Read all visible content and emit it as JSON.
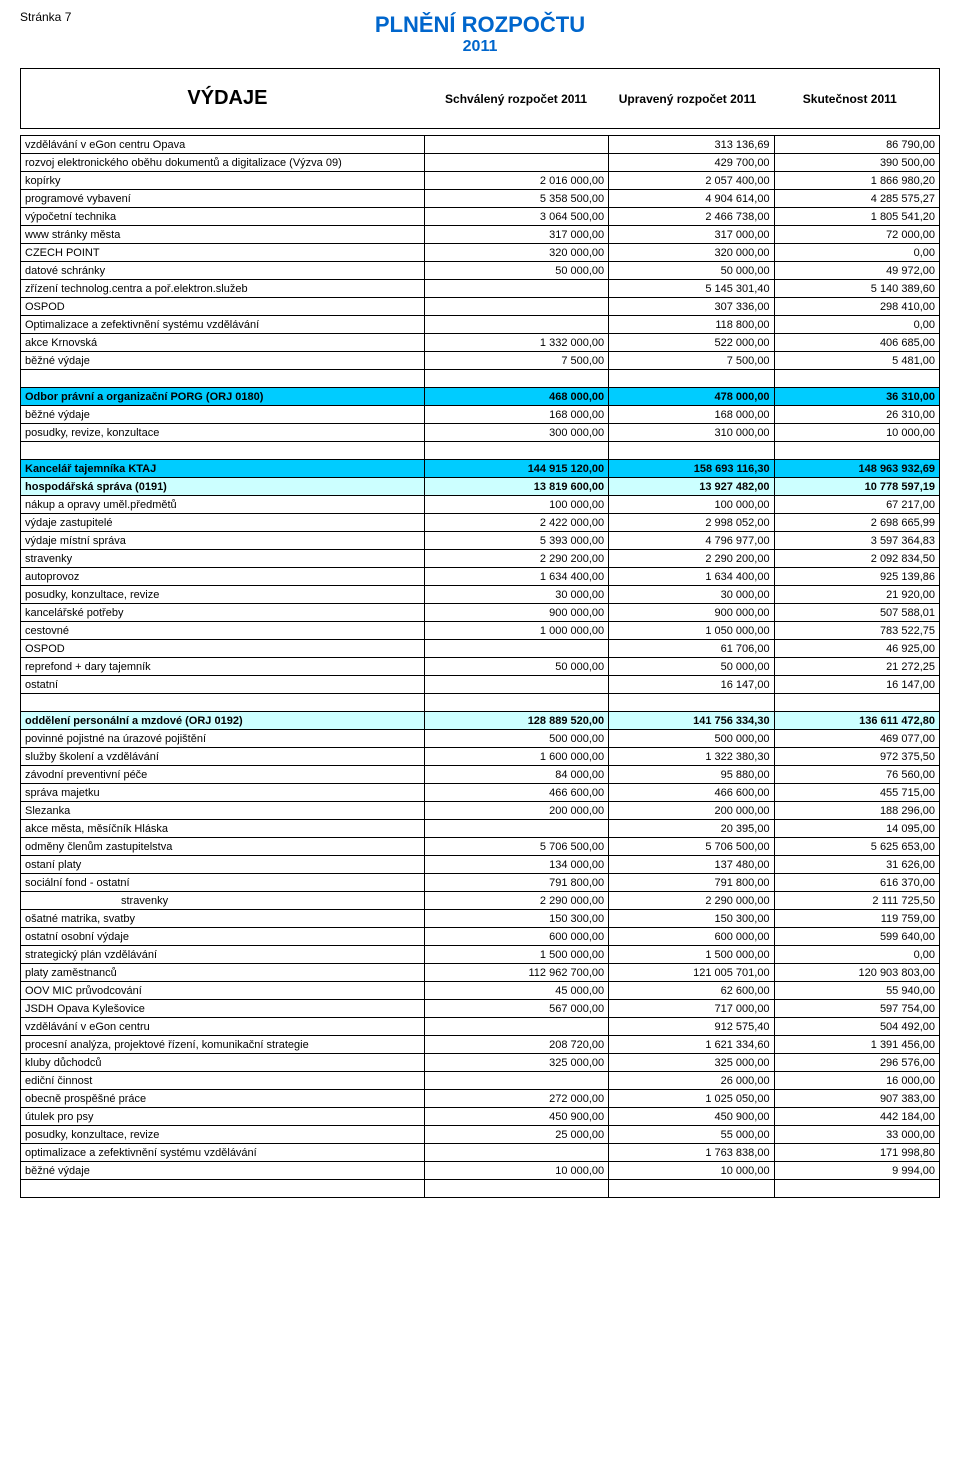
{
  "page_meta": "Stránka 7",
  "title": "PLNĚNÍ ROZPOČTU",
  "subtitle": "2011",
  "header": {
    "h1": "VÝDAJE",
    "h2": "Schválený rozpočet 2011",
    "h3": "Upravený rozpočet 2011",
    "h4": "Skutečnost 2011"
  },
  "colors": {
    "hl1": "#00ccff",
    "hl2": "#ccffff"
  },
  "rows": [
    {
      "l": "vzdělávání v eGon centru Opava",
      "c1": "",
      "c2": "313 136,69",
      "c3": "86 790,00"
    },
    {
      "l": "rozvoj elektronického oběhu dokumentů a digitalizace (Výzva 09)",
      "c1": "",
      "c2": "429 700,00",
      "c3": "390 500,00"
    },
    {
      "l": "kopírky",
      "c1": "2 016 000,00",
      "c2": "2 057 400,00",
      "c3": "1 866 980,20"
    },
    {
      "l": "programové vybavení",
      "c1": "5 358 500,00",
      "c2": "4 904 614,00",
      "c3": "4 285 575,27"
    },
    {
      "l": "výpočetní technika",
      "c1": "3 064 500,00",
      "c2": "2 466 738,00",
      "c3": "1 805 541,20"
    },
    {
      "l": "www stránky města",
      "c1": "317 000,00",
      "c2": "317 000,00",
      "c3": "72 000,00"
    },
    {
      "l": "CZECH POINT",
      "c1": "320 000,00",
      "c2": "320 000,00",
      "c3": "0,00"
    },
    {
      "l": "datové schránky",
      "c1": "50 000,00",
      "c2": "50 000,00",
      "c3": "49 972,00"
    },
    {
      "l": "zřízení technolog.centra a poř.elektron.služeb",
      "c1": "",
      "c2": "5 145 301,40",
      "c3": "5 140 389,60"
    },
    {
      "l": "OSPOD",
      "c1": "",
      "c2": "307 336,00",
      "c3": "298 410,00"
    },
    {
      "l": "Optimalizace a zefektivnění systému vzdělávání",
      "c1": "",
      "c2": "118 800,00",
      "c3": "0,00"
    },
    {
      "l": "akce Krnovská",
      "c1": "1 332 000,00",
      "c2": "522 000,00",
      "c3": "406 685,00"
    },
    {
      "l": "běžné výdaje",
      "c1": "7 500,00",
      "c2": "7 500,00",
      "c3": "5 481,00"
    },
    {
      "spacer": true
    },
    {
      "l": "Odbor právní a organizační PORG (ORJ 0180)",
      "c1": "468 000,00",
      "c2": "478 000,00",
      "c3": "36 310,00",
      "bold": true,
      "bg": "hl1"
    },
    {
      "l": "běžné výdaje",
      "c1": "168 000,00",
      "c2": "168 000,00",
      "c3": "26 310,00"
    },
    {
      "l": "posudky, revize, konzultace",
      "c1": "300 000,00",
      "c2": "310 000,00",
      "c3": "10 000,00"
    },
    {
      "spacer": true
    },
    {
      "l": "Kancelář tajemníka KTAJ",
      "c1": "144 915 120,00",
      "c2": "158 693 116,30",
      "c3": "148 963 932,69",
      "bold": true,
      "bg": "hl1"
    },
    {
      "l": "hospodářská správa (0191)",
      "c1": "13 819 600,00",
      "c2": "13 927 482,00",
      "c3": "10 778 597,19",
      "bold": true,
      "bg": "hl2"
    },
    {
      "l": "nákup a opravy uměl.předmětů",
      "c1": "100 000,00",
      "c2": "100 000,00",
      "c3": "67 217,00"
    },
    {
      "l": "výdaje zastupitelé",
      "c1": "2 422 000,00",
      "c2": "2 998 052,00",
      "c3": "2 698 665,99"
    },
    {
      "l": "výdaje místní správa",
      "c1": "5 393 000,00",
      "c2": "4 796 977,00",
      "c3": "3 597 364,83"
    },
    {
      "l": "stravenky",
      "c1": "2 290 200,00",
      "c2": "2 290 200,00",
      "c3": "2 092 834,50"
    },
    {
      "l": "autoprovoz",
      "c1": "1 634 400,00",
      "c2": "1 634 400,00",
      "c3": "925 139,86"
    },
    {
      "l": "posudky, konzultace, revize",
      "c1": "30 000,00",
      "c2": "30 000,00",
      "c3": "21 920,00"
    },
    {
      "l": "kancelářské potřeby",
      "c1": "900 000,00",
      "c2": "900 000,00",
      "c3": "507 588,01"
    },
    {
      "l": "cestovné",
      "c1": "1 000 000,00",
      "c2": "1 050 000,00",
      "c3": "783 522,75"
    },
    {
      "l": "OSPOD",
      "c1": "",
      "c2": "61 706,00",
      "c3": "46 925,00"
    },
    {
      "l": "reprefond + dary tajemník",
      "c1": "50 000,00",
      "c2": "50 000,00",
      "c3": "21 272,25"
    },
    {
      "l": "ostatní",
      "c1": "",
      "c2": "16 147,00",
      "c3": "16 147,00"
    },
    {
      "spacer": true
    },
    {
      "l": "oddělení personální a mzdové (ORJ 0192)",
      "c1": "128 889 520,00",
      "c2": "141 756 334,30",
      "c3": "136 611 472,80",
      "bold": true,
      "bg": "hl2"
    },
    {
      "l": "povinné pojistné na úrazové pojištění",
      "c1": "500 000,00",
      "c2": "500 000,00",
      "c3": "469 077,00"
    },
    {
      "l": "služby školení a vzdělávání",
      "c1": "1 600 000,00",
      "c2": "1 322 380,30",
      "c3": "972 375,50"
    },
    {
      "l": "závodní preventivní péče",
      "c1": "84 000,00",
      "c2": "95 880,00",
      "c3": "76 560,00"
    },
    {
      "l": "správa majetku",
      "c1": "466 600,00",
      "c2": "466 600,00",
      "c3": "455 715,00"
    },
    {
      "l": "Slezanka",
      "c1": "200 000,00",
      "c2": "200 000,00",
      "c3": "188 296,00"
    },
    {
      "l": "akce města, měsíčník Hláska",
      "c1": "",
      "c2": "20 395,00",
      "c3": "14 095,00"
    },
    {
      "l": "odměny členům zastupitelstva",
      "c1": "5 706 500,00",
      "c2": "5 706 500,00",
      "c3": "5 625 653,00"
    },
    {
      "l": "ostaní platy",
      "c1": "134 000,00",
      "c2": "137 480,00",
      "c3": "31 626,00"
    },
    {
      "l": "sociální fond - ostatní",
      "c1": "791 800,00",
      "c2": "791 800,00",
      "c3": "616 370,00"
    },
    {
      "l": "stravenky",
      "c1": "2 290 000,00",
      "c2": "2 290 000,00",
      "c3": "2 111 725,50",
      "indent": true
    },
    {
      "l": "ošatné matrika, svatby",
      "c1": "150 300,00",
      "c2": "150 300,00",
      "c3": "119 759,00"
    },
    {
      "l": "ostatní osobní výdaje",
      "c1": "600 000,00",
      "c2": "600 000,00",
      "c3": "599 640,00"
    },
    {
      "l": "strategický plán vzdělávání",
      "c1": "1 500 000,00",
      "c2": "1 500 000,00",
      "c3": "0,00"
    },
    {
      "l": "platy zaměstnanců",
      "c1": "112 962 700,00",
      "c2": "121 005 701,00",
      "c3": "120 903 803,00"
    },
    {
      "l": "OOV MIC průvodcování",
      "c1": "45 000,00",
      "c2": "62 600,00",
      "c3": "55 940,00"
    },
    {
      "l": "JSDH Opava Kylešovice",
      "c1": "567 000,00",
      "c2": "717 000,00",
      "c3": "597 754,00"
    },
    {
      "l": "vzdělávání v eGon centru",
      "c1": "",
      "c2": "912 575,40",
      "c3": "504 492,00"
    },
    {
      "l": "procesní analýza, projektové řízení, komunikační strategie",
      "c1": "208 720,00",
      "c2": "1 621 334,60",
      "c3": "1 391 456,00"
    },
    {
      "l": "kluby důchodců",
      "c1": "325 000,00",
      "c2": "325 000,00",
      "c3": "296 576,00"
    },
    {
      "l": "ediční činnost",
      "c1": "",
      "c2": "26 000,00",
      "c3": "16 000,00"
    },
    {
      "l": "obecně prospěšné práce",
      "c1": "272 000,00",
      "c2": "1 025 050,00",
      "c3": "907 383,00"
    },
    {
      "l": "útulek pro psy",
      "c1": "450 900,00",
      "c2": "450 900,00",
      "c3": "442 184,00"
    },
    {
      "l": "posudky, konzultace, revize",
      "c1": "25 000,00",
      "c2": "55 000,00",
      "c3": "33 000,00"
    },
    {
      "l": "optimalizace a zefektivnění systému vzdělávání",
      "c1": "",
      "c2": "1 763 838,00",
      "c3": "171 998,80"
    },
    {
      "l": "běžné výdaje",
      "c1": "10 000,00",
      "c2": "10 000,00",
      "c3": "9 994,00"
    },
    {
      "spacer": true
    }
  ]
}
